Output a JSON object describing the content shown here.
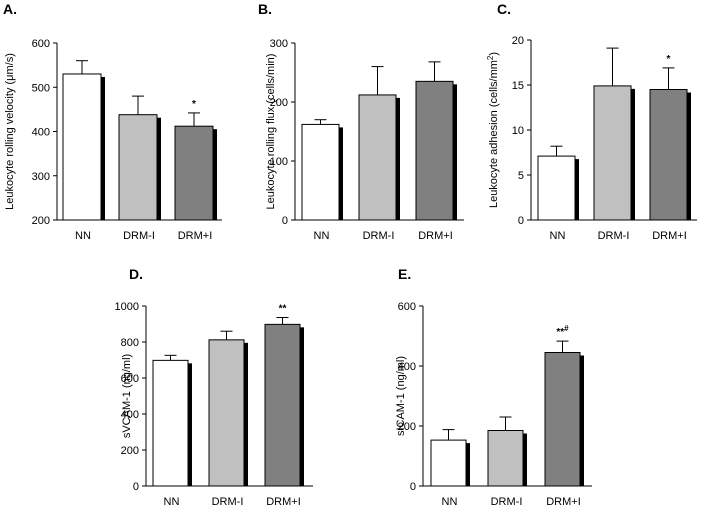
{
  "figure": {
    "bar_colors": [
      "#ffffff",
      "#c0c0c0",
      "#808080"
    ],
    "shadow_color": "#000000",
    "axis_color": "#000000"
  },
  "chart_data": [
    {
      "id": "A",
      "panel_label": "A.",
      "type": "bar",
      "categories": [
        "NN",
        "DRM-I",
        "DRM+I"
      ],
      "values": [
        530,
        438,
        412
      ],
      "errors": [
        30,
        42,
        30
      ],
      "annotations": [
        "",
        "",
        "*"
      ],
      "ylabel": "Leukocyte rolling velocity (μm/s)",
      "ylim": [
        200,
        600
      ],
      "yticks": [
        200,
        300,
        400,
        500,
        600
      ]
    },
    {
      "id": "B",
      "panel_label": "B.",
      "type": "bar",
      "categories": [
        "NN",
        "DRM-I",
        "DRM+I"
      ],
      "values": [
        162,
        212,
        235
      ],
      "errors": [
        8,
        48,
        33
      ],
      "annotations": [
        "",
        "",
        ""
      ],
      "ylabel": "Leukocyte rolling flux (cells/min)",
      "ylim": [
        0,
        300
      ],
      "yticks": [
        0,
        100,
        200,
        300
      ]
    },
    {
      "id": "C",
      "panel_label": "C.",
      "type": "bar",
      "categories": [
        "NN",
        "DRM-I",
        "DRM+I"
      ],
      "values": [
        7.1,
        14.9,
        14.5
      ],
      "errors": [
        1.1,
        4.2,
        2.4
      ],
      "annotations": [
        "",
        "",
        "*"
      ],
      "ylabel": "Leukocyte adhesion (cells/mm",
      "ylabel_sup": "2",
      "ylabel_end": ")",
      "ylim": [
        0,
        20
      ],
      "yticks": [
        0,
        5,
        10,
        15,
        20
      ]
    },
    {
      "id": "D",
      "panel_label": "D.",
      "type": "bar",
      "categories": [
        "NN",
        "DRM-I",
        "DRM+I"
      ],
      "values": [
        698,
        812,
        898
      ],
      "errors": [
        28,
        48,
        38
      ],
      "annotations": [
        "",
        "",
        "**"
      ],
      "ylabel": "sVCAM-1 (ng/ml)",
      "ylim": [
        0,
        1000
      ],
      "yticks": [
        0,
        200,
        400,
        600,
        800,
        1000
      ]
    },
    {
      "id": "E",
      "panel_label": "E.",
      "type": "bar",
      "categories": [
        "NN",
        "DRM-I",
        "DRM+I"
      ],
      "values": [
        153,
        185,
        445
      ],
      "errors": [
        35,
        45,
        38
      ],
      "annotations": [
        "",
        "",
        "**"
      ],
      "annotation_sup": [
        "",
        "",
        "#"
      ],
      "ylabel": "sICAM-1 (ng/ml)",
      "ylim": [
        0,
        600
      ],
      "yticks": [
        0,
        200,
        400,
        600
      ]
    }
  ]
}
